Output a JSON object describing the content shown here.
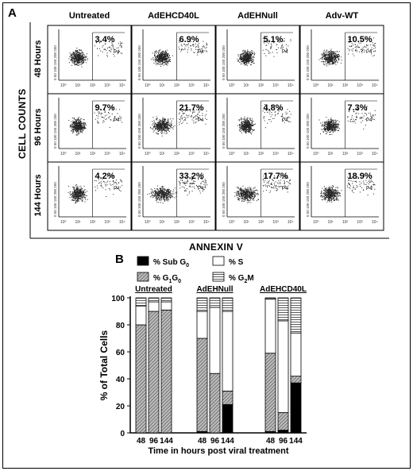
{
  "panel_a": {
    "letter": "A",
    "columns": [
      "Untreated",
      "AdEHCD40L",
      "AdEHNull",
      "Adv-WT"
    ],
    "rows": [
      "48 Hours",
      "96 Hours",
      "144 Hours"
    ],
    "x_axis_title": "ANNEXIN V",
    "y_axis_title": "CELL COUNTS",
    "gate_label": "P4",
    "percentages": [
      [
        "3.4%",
        "6.9%",
        "5.1%",
        "10.5%"
      ],
      [
        "9.7%",
        "21.7%",
        "4.8%",
        "7.3%"
      ],
      [
        "4.2%",
        "33.2%",
        "17.7%",
        "18.9%"
      ]
    ]
  },
  "panel_b": {
    "letter": "B",
    "legend": [
      {
        "label": "% Sub G",
        "sub": "0",
        "pattern": "black"
      },
      {
        "label": "% S",
        "sub": "",
        "pattern": "white"
      },
      {
        "label": "% G",
        "sub": "1",
        "label2": "G",
        "sub2": "0",
        "pattern": "hatch"
      },
      {
        "label": "% G",
        "sub": "2",
        "label2": "M",
        "sub2": "",
        "pattern": "hlines"
      }
    ]
  },
  "chart_data": [
    {
      "type": "bar",
      "stacked": true,
      "ylabel": "% of Total Cells",
      "xlabel": "Time in hours post viral treatment",
      "ylim": [
        0,
        100
      ],
      "yticks": [
        0,
        20,
        40,
        60,
        80,
        100
      ],
      "groups": [
        "Untreated",
        "AdEHNull",
        "AdEHCD40L"
      ],
      "categories": [
        "48",
        "96",
        "144",
        "48",
        "96",
        "144",
        "48",
        "96",
        "144"
      ],
      "series": [
        {
          "name": "% Sub G0",
          "color": "#000000",
          "values": [
            0,
            0,
            0,
            1,
            0,
            21,
            1,
            2,
            37
          ]
        },
        {
          "name": "% G1G0",
          "color": "#9a9a9a",
          "values": [
            80,
            90,
            91,
            69,
            44,
            10,
            58,
            13,
            5
          ]
        },
        {
          "name": "% S",
          "color": "#ffffff",
          "values": [
            14,
            7,
            6,
            20,
            49,
            59,
            40,
            68,
            32
          ]
        },
        {
          "name": "% G2M",
          "color": "#d0d0d0",
          "values": [
            6,
            3,
            3,
            10,
            7,
            10,
            1,
            17,
            26
          ]
        }
      ]
    }
  ]
}
